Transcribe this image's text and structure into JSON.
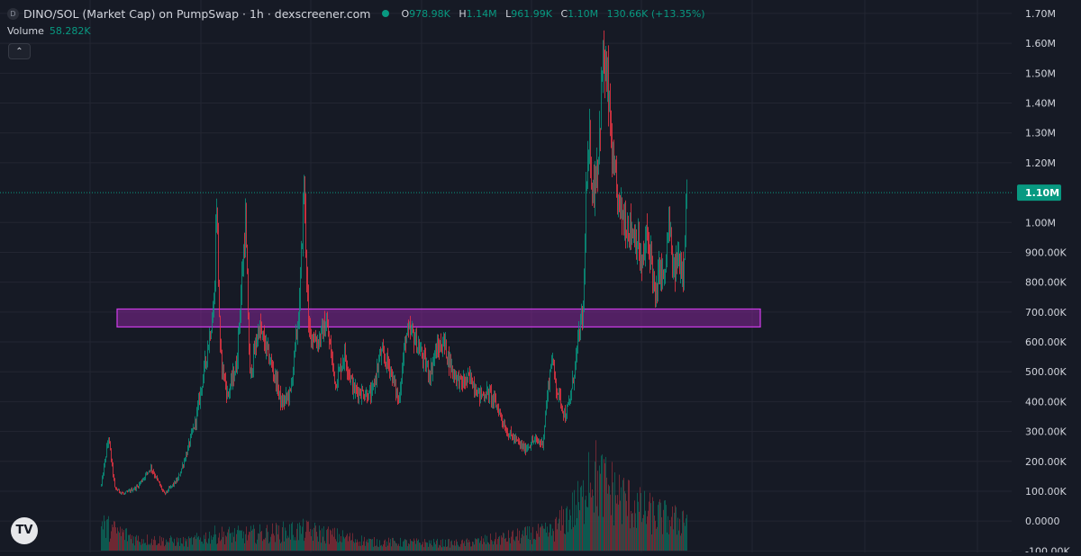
{
  "header": {
    "symbol_badge": "D",
    "title": "DINO/SOL (Market Cap) on PumpSwap · 1h · dexscreener.com",
    "ohlc": {
      "o_label": "O",
      "o": "978.98K",
      "h_label": "H",
      "h": "1.14M",
      "l_label": "L",
      "l": "961.99K",
      "c_label": "C",
      "c": "1.10M",
      "change": "130.66K (+13.35%)"
    }
  },
  "volume_legend": {
    "label": "Volume",
    "value": "58.282K"
  },
  "collapse_icon": "chevron-up-icon",
  "logo_text": "TV",
  "colors": {
    "up": "#089981",
    "down": "#f23645",
    "zone": "#9c27b0",
    "background": "#161a25"
  },
  "chart_data": {
    "type": "candlestick",
    "interval": "1h",
    "y_axis": {
      "ticks": [
        "1.70M",
        "1.60M",
        "1.50M",
        "1.40M",
        "1.30M",
        "1.20M",
        "1.00M",
        "900.00K",
        "800.00K",
        "700.00K",
        "600.00K",
        "500.00K",
        "400.00K",
        "300.00K",
        "200.00K",
        "100.00K",
        "0.0000",
        "-100.00K"
      ],
      "tick_values": [
        1700000,
        1600000,
        1500000,
        1400000,
        1300000,
        1200000,
        1000000,
        900000,
        800000,
        700000,
        600000,
        500000,
        400000,
        300000,
        200000,
        100000,
        0,
        -100000
      ],
      "range": [
        -105000,
        1745000
      ]
    },
    "last_price": {
      "value": 1100000,
      "label": "1.10M"
    },
    "zone": {
      "low": 650000,
      "high": 710000
    },
    "price_path": [
      [
        0,
        120000
      ],
      [
        8,
        280000
      ],
      [
        15,
        110000
      ],
      [
        25,
        90000
      ],
      [
        40,
        115000
      ],
      [
        55,
        180000
      ],
      [
        70,
        90000
      ],
      [
        85,
        140000
      ],
      [
        95,
        230000
      ],
      [
        105,
        340000
      ],
      [
        115,
        520000
      ],
      [
        125,
        720000
      ],
      [
        128,
        1080000
      ],
      [
        132,
        560000
      ],
      [
        140,
        420000
      ],
      [
        150,
        520000
      ],
      [
        160,
        1000000
      ],
      [
        165,
        480000
      ],
      [
        175,
        650000
      ],
      [
        185,
        560000
      ],
      [
        195,
        460000
      ],
      [
        200,
        390000
      ],
      [
        210,
        430000
      ],
      [
        220,
        720000
      ],
      [
        225,
        1130000
      ],
      [
        230,
        640000
      ],
      [
        240,
        600000
      ],
      [
        250,
        660000
      ],
      [
        260,
        460000
      ],
      [
        270,
        560000
      ],
      [
        280,
        440000
      ],
      [
        290,
        430000
      ],
      [
        300,
        420000
      ],
      [
        310,
        560000
      ],
      [
        320,
        520000
      ],
      [
        330,
        400000
      ],
      [
        338,
        620000
      ],
      [
        345,
        630000
      ],
      [
        355,
        560000
      ],
      [
        365,
        490000
      ],
      [
        370,
        560000
      ],
      [
        380,
        600000
      ],
      [
        390,
        500000
      ],
      [
        400,
        460000
      ],
      [
        410,
        480000
      ],
      [
        420,
        420000
      ],
      [
        430,
        430000
      ],
      [
        440,
        380000
      ],
      [
        450,
        300000
      ],
      [
        460,
        270000
      ],
      [
        470,
        240000
      ],
      [
        480,
        270000
      ],
      [
        490,
        260000
      ],
      [
        495,
        420000
      ],
      [
        500,
        550000
      ],
      [
        505,
        450000
      ],
      [
        515,
        350000
      ],
      [
        520,
        400000
      ],
      [
        525,
        500000
      ],
      [
        530,
        620000
      ],
      [
        535,
        700000
      ],
      [
        538,
        1080000
      ],
      [
        542,
        1250000
      ],
      [
        546,
        1100000
      ],
      [
        552,
        1240000
      ],
      [
        557,
        1550000
      ],
      [
        563,
        1420000
      ],
      [
        568,
        1170000
      ],
      [
        575,
        1050000
      ],
      [
        582,
        1000000
      ],
      [
        590,
        970000
      ],
      [
        595,
        940000
      ],
      [
        600,
        840000
      ],
      [
        605,
        950000
      ],
      [
        610,
        900000
      ],
      [
        615,
        730000
      ],
      [
        620,
        850000
      ],
      [
        625,
        800000
      ],
      [
        630,
        1000000
      ],
      [
        635,
        820000
      ],
      [
        640,
        880000
      ],
      [
        646,
        850000
      ],
      [
        650,
        1100000
      ]
    ],
    "volume_path": [
      [
        0,
        35000
      ],
      [
        40,
        16000
      ],
      [
        95,
        12000
      ],
      [
        125,
        22000
      ],
      [
        160,
        22000
      ],
      [
        225,
        28000
      ],
      [
        300,
        12000
      ],
      [
        400,
        10000
      ],
      [
        450,
        18000
      ],
      [
        500,
        26000
      ],
      [
        535,
        70000
      ],
      [
        540,
        120000
      ],
      [
        552,
        95000
      ],
      [
        570,
        80000
      ],
      [
        600,
        55000
      ],
      [
        640,
        40000
      ],
      [
        650,
        50000
      ]
    ]
  }
}
